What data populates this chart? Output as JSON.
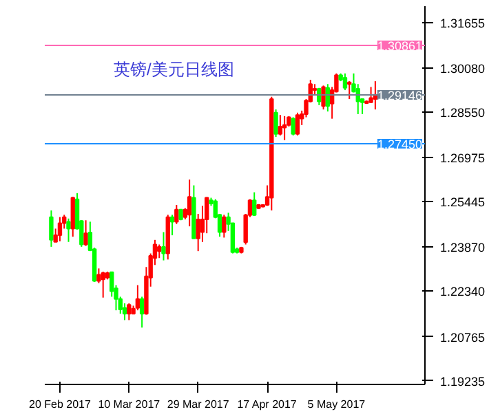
{
  "chart_data": {
    "type": "candlestick",
    "title": "英镑/美元日线图",
    "categories": [
      null,
      null,
      "20 Feb 2017",
      null,
      null,
      null,
      null,
      null,
      null,
      null,
      null,
      null,
      null,
      null,
      null,
      null,
      null,
      null,
      "10 Mar 2017",
      null,
      null,
      null,
      null,
      null,
      null,
      null,
      null,
      null,
      null,
      null,
      null,
      null,
      null,
      null,
      "29 Mar 2017",
      null,
      null,
      null,
      null,
      null,
      null,
      null,
      null,
      null,
      null,
      null,
      null,
      null,
      null,
      null,
      "17 Apr 2017",
      null,
      null,
      null,
      null,
      null,
      null,
      null,
      null,
      null,
      null,
      null,
      null,
      null,
      null,
      null,
      "5 May 2017",
      null,
      null,
      null,
      null,
      null,
      null,
      null,
      null,
      null
    ],
    "ohlc": [
      [
        1.2491,
        1.2514,
        1.2388,
        1.2412
      ],
      [
        1.2405,
        1.2451,
        1.2405,
        1.2428
      ],
      [
        1.2428,
        1.2491,
        1.2407,
        1.247
      ],
      [
        1.247,
        1.2499,
        1.2451,
        1.2491
      ],
      [
        1.2475,
        1.2486,
        1.2405,
        1.2451
      ],
      [
        1.2451,
        1.2561,
        1.2423,
        1.2558
      ],
      [
        1.2553,
        1.2574,
        1.2448,
        1.2451
      ],
      [
        1.2478,
        1.248,
        1.2388,
        1.2396
      ],
      [
        1.2396,
        1.248,
        1.2391,
        1.2435
      ],
      [
        1.2438,
        1.2475,
        1.2373,
        1.2376
      ],
      [
        1.238,
        1.2385,
        1.2266,
        1.227
      ],
      [
        1.227,
        1.2313,
        1.2262,
        1.2291
      ],
      [
        1.2275,
        1.2302,
        1.2212,
        1.2297
      ],
      [
        1.2281,
        1.2302,
        1.2275,
        1.2297
      ],
      [
        1.23,
        1.23,
        1.2215,
        1.2234
      ],
      [
        1.2244,
        1.2255,
        1.2168,
        1.2207
      ],
      [
        1.2207,
        1.2215,
        1.2156,
        1.2171
      ],
      [
        1.2176,
        1.2192,
        1.2134,
        1.2156
      ],
      [
        1.2156,
        1.2192,
        1.2134,
        1.2187
      ],
      [
        1.2156,
        1.2184,
        1.2156,
        1.2174
      ],
      [
        1.2176,
        1.2255,
        1.2168,
        1.2207
      ],
      [
        1.2207,
        1.2215,
        1.2108,
        1.2156
      ],
      [
        1.2156,
        1.2318,
        1.2153,
        1.2286
      ],
      [
        1.2281,
        1.2365,
        1.225,
        1.2357
      ],
      [
        1.2349,
        1.2412,
        1.2325,
        1.2396
      ],
      [
        1.2373,
        1.2396,
        1.2349,
        1.2388
      ],
      [
        1.2388,
        1.2439,
        1.2341,
        1.2365
      ],
      [
        1.2365,
        1.2499,
        1.2344,
        1.2491
      ],
      [
        1.2491,
        1.2499,
        1.2428,
        1.2475
      ],
      [
        1.2475,
        1.2533,
        1.2467,
        1.2517
      ],
      [
        1.2517,
        1.2519,
        1.248,
        1.2483
      ],
      [
        1.2491,
        1.2522,
        1.2483,
        1.2517
      ],
      [
        1.2499,
        1.2621,
        1.2459,
        1.2561
      ],
      [
        1.2558,
        1.2601,
        1.2417,
        1.2417
      ],
      [
        1.2417,
        1.2502,
        1.2373,
        1.2483
      ],
      [
        1.2439,
        1.253,
        1.2405,
        1.2483
      ],
      [
        1.2483,
        1.256,
        1.2435,
        1.2558
      ],
      [
        1.2549,
        1.2558,
        1.253,
        1.2538
      ],
      [
        1.2546,
        1.2553,
        1.2487,
        1.2491
      ],
      [
        1.2499,
        1.2501,
        1.2423,
        1.2439
      ],
      [
        1.2439,
        1.2499,
        1.242,
        1.2491
      ],
      [
        1.2491,
        1.2506,
        1.2443,
        1.2467
      ],
      [
        1.247,
        1.2471,
        1.2365,
        1.2369
      ],
      [
        1.238,
        1.2385,
        1.2365,
        1.2369
      ],
      [
        1.2369,
        1.2388,
        1.2365,
        1.2385
      ],
      [
        1.2404,
        1.2502,
        1.2396,
        1.2498
      ],
      [
        1.2498,
        1.2553,
        1.2491,
        1.2549
      ],
      [
        1.2549,
        1.2577,
        1.2495,
        1.2498
      ],
      [
        1.2522,
        1.2536,
        1.252,
        1.2533
      ],
      [
        1.2527,
        1.2535,
        1.2525,
        1.2533
      ],
      [
        1.2533,
        1.2601,
        1.253,
        1.2561
      ],
      [
        1.2558,
        1.2908,
        1.2514,
        1.29
      ],
      [
        1.2853,
        1.2864,
        1.2769,
        1.2779
      ],
      [
        1.2779,
        1.2845,
        1.2774,
        1.2805
      ],
      [
        1.2801,
        1.2841,
        1.2758,
        1.281
      ],
      [
        1.281,
        1.2841,
        1.2805,
        1.2837
      ],
      [
        1.2832,
        1.2837,
        1.2774,
        1.2779
      ],
      [
        1.2779,
        1.2853,
        1.2774,
        1.2845
      ],
      [
        1.2832,
        1.286,
        1.281,
        1.2848
      ],
      [
        1.2848,
        1.29,
        1.2837,
        1.2895
      ],
      [
        1.2892,
        1.2967,
        1.2889,
        1.2952
      ],
      [
        1.2931,
        1.2952,
        1.2915,
        1.2936
      ],
      [
        1.2936,
        1.2939,
        1.2879,
        1.2892
      ],
      [
        1.2876,
        1.2947,
        1.2864,
        1.2942
      ],
      [
        1.2939,
        1.2952,
        1.2857,
        1.2876
      ],
      [
        1.2884,
        1.2942,
        1.2832,
        1.2931
      ],
      [
        1.2926,
        1.2989,
        1.2923,
        1.2983
      ],
      [
        1.2983,
        1.2989,
        1.2962,
        1.2967
      ],
      [
        1.2974,
        1.2989,
        1.2931,
        1.2939
      ],
      [
        1.2952,
        1.2962,
        1.29,
        1.2958
      ],
      [
        1.2952,
        1.2989,
        1.2923,
        1.2926
      ],
      [
        1.2936,
        1.2952,
        1.2848,
        1.2892
      ],
      [
        1.29,
        1.2902,
        1.2848,
        1.2889
      ],
      [
        1.2886,
        1.2895,
        1.2884,
        1.2892
      ],
      [
        1.2889,
        1.2942,
        1.2886,
        1.2904
      ],
      [
        1.29,
        1.2962,
        1.2864,
        1.2915
      ]
    ],
    "colors": [
      "#00ff00",
      "#ff0000",
      "#ff0000",
      "#ff0000",
      "#00ff00",
      "#ff0000",
      "#00ff00",
      "#00ff00",
      "#ff0000",
      "#00ff00",
      "#00ff00",
      "#ff0000",
      "#ff0000",
      "#ff0000",
      "#00ff00",
      "#00ff00",
      "#00ff00",
      "#00ff00",
      "#ff0000",
      "#ff0000",
      "#ff0000",
      "#00ff00",
      "#ff0000",
      "#ff0000",
      "#ff0000",
      "#ff0000",
      "#00ff00",
      "#ff0000",
      "#00ff00",
      "#ff0000",
      "#00ff00",
      "#ff0000",
      "#ff0000",
      "#00ff00",
      "#ff0000",
      "#ff0000",
      "#ff0000",
      "#00ff00",
      "#00ff00",
      "#00ff00",
      "#ff0000",
      "#00ff00",
      "#00ff00",
      "#00ff00",
      "#ff0000",
      "#ff0000",
      "#ff0000",
      "#00ff00",
      "#ff0000",
      "#ff0000",
      "#ff0000",
      "#ff0000",
      "#00ff00",
      "#ff0000",
      "#ff0000",
      "#ff0000",
      "#00ff00",
      "#ff0000",
      "#ff0000",
      "#ff0000",
      "#ff0000",
      "#ff0000",
      "#00ff00",
      "#ff0000",
      "#00ff00",
      "#ff0000",
      "#ff0000",
      "#00ff00",
      "#00ff00",
      "#ff0000",
      "#00ff00",
      "#00ff00",
      "#00ff00",
      "#ff0000",
      "#ff0000",
      "#ff0000"
    ],
    "ylim": [
      1.1911,
      1.3222
    ],
    "yticks": [
      {
        "value": 1.31655,
        "label": "1.31655"
      },
      {
        "value": 1.3008,
        "label": "1.30080"
      },
      {
        "value": 1.2855,
        "label": "1.28550"
      },
      {
        "value": 1.26975,
        "label": "1.26975"
      },
      {
        "value": 1.25445,
        "label": "1.25445"
      },
      {
        "value": 1.2387,
        "label": "1.23870"
      },
      {
        "value": 1.2234,
        "label": "1.22340"
      },
      {
        "value": 1.20765,
        "label": "1.20765"
      },
      {
        "value": 1.19235,
        "label": "1.19235"
      }
    ],
    "ref_lines": [
      {
        "axis": "y",
        "value": 1.30861,
        "label": "1.30861",
        "color": "#ff69b4"
      },
      {
        "axis": "y",
        "value": 1.29146,
        "label": "1.29146",
        "color": "#708090"
      },
      {
        "axis": "y",
        "value": 1.2745,
        "label": "1.27450",
        "color": "#1e90ff"
      }
    ]
  }
}
